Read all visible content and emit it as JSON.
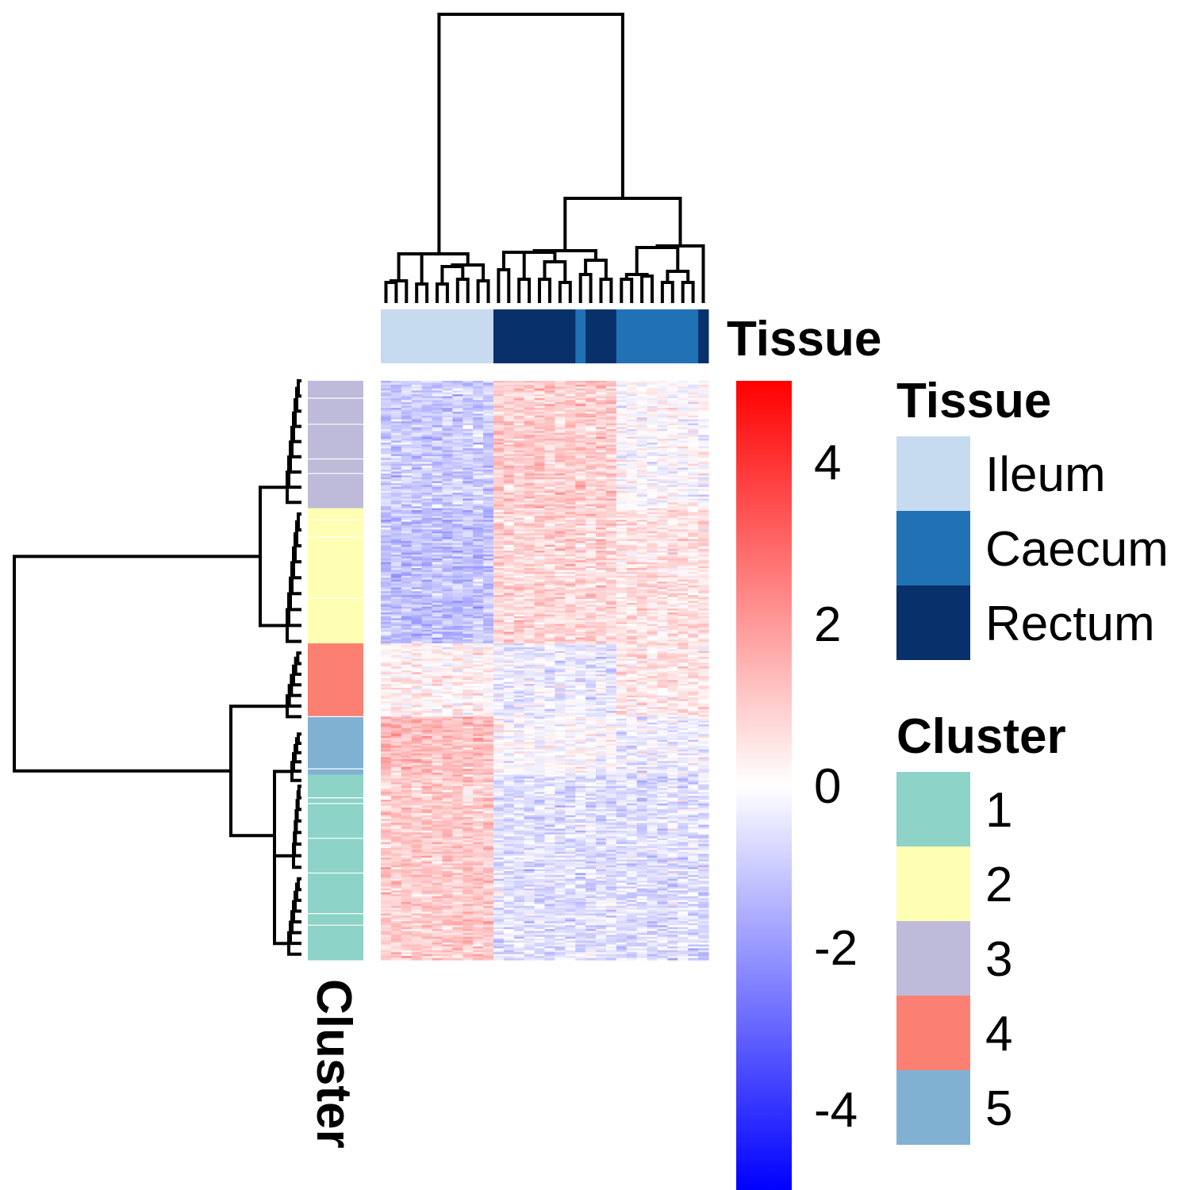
{
  "chart_data": {
    "type": "heatmap",
    "n_samples": 32,
    "n_genes": 300,
    "tissue_annotation": {
      "title": "Tissue",
      "column_groups": [
        {
          "tissue": "Ileum",
          "count": 11
        },
        {
          "tissue": "Rectum",
          "count": 8
        },
        {
          "tissue": "Caecum",
          "count": 1
        },
        {
          "tissue": "Rectum",
          "count": 3
        },
        {
          "tissue": "Caecum",
          "count": 8
        },
        {
          "tissue": "Rectum",
          "count": 1
        }
      ]
    },
    "cluster_annotation": {
      "title": "Cluster",
      "row_groups": [
        {
          "cluster": "3",
          "rows": 66
        },
        {
          "cluster": "2",
          "rows": 70
        },
        {
          "cluster": "4",
          "rows": 38
        },
        {
          "cluster": "5",
          "rows": 30
        },
        {
          "cluster": "1",
          "rows": 96
        }
      ]
    },
    "color_scale": {
      "min": -5,
      "max": 5,
      "ticks": [
        "4",
        "2",
        "0",
        "-2",
        "-4"
      ],
      "tick_values": [
        4,
        2,
        0,
        -2,
        -4
      ],
      "low_color": "#0000FF",
      "mid_color": "#FFFFFF",
      "high_color": "#FF0000"
    },
    "legends": {
      "tissue": {
        "title": "Tissue",
        "items": [
          {
            "label": "Ileum",
            "color": "#C6DBEF"
          },
          {
            "label": "Caecum",
            "color": "#2171B5"
          },
          {
            "label": "Rectum",
            "color": "#08306B"
          }
        ]
      },
      "cluster": {
        "title": "Cluster",
        "items": [
          {
            "label": "1",
            "color": "#8DD3C7"
          },
          {
            "label": "2",
            "color": "#FFFFB3"
          },
          {
            "label": "3",
            "color": "#BEBADA"
          },
          {
            "label": "4",
            "color": "#FB8072"
          },
          {
            "label": "5",
            "color": "#80B1D3"
          }
        ]
      }
    },
    "approx_group_mean_zscores": {
      "note_rows": "cluster order 3,2,4,5,1; column groups Ileum, Rectum/Caecum-block-1, Caecum-block-2",
      "cluster_3": [
        -1.0,
        1.0,
        0.0
      ],
      "cluster_2": [
        -1.2,
        0.8,
        0.6
      ],
      "cluster_4": [
        0.3,
        -0.4,
        0.5
      ],
      "cluster_5": [
        1.3,
        0.0,
        -0.3
      ],
      "cluster_1": [
        1.0,
        -0.6,
        -0.6
      ]
    }
  }
}
